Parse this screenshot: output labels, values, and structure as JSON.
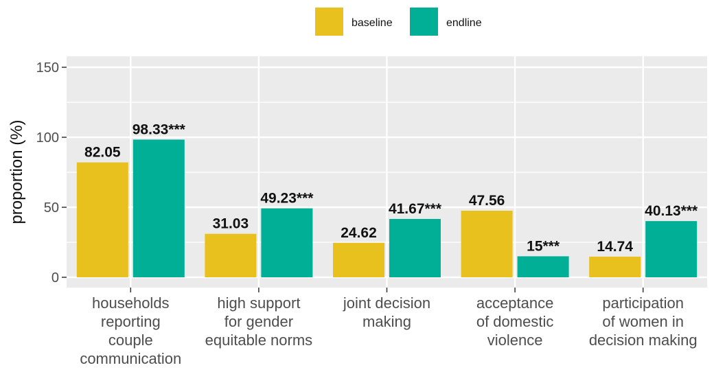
{
  "chart_data": {
    "type": "bar",
    "categories": [
      [
        "households",
        "reporting",
        "couple",
        "communication"
      ],
      [
        "high support",
        "for gender",
        "equitable norms"
      ],
      [
        "joint decision",
        "making"
      ],
      [
        "acceptance",
        "of domestic",
        "violence"
      ],
      [
        "participation",
        "of women in",
        "decision making"
      ]
    ],
    "series": [
      {
        "name": "baseline",
        "color": "#E8C11F",
        "values": [
          82.05,
          31.03,
          24.62,
          47.56,
          14.74
        ],
        "labels": [
          "82.05",
          "31.03",
          "24.62",
          "47.56",
          "14.74"
        ]
      },
      {
        "name": "endline",
        "color": "#00AF96",
        "values": [
          98.33,
          49.23,
          41.67,
          15,
          40.13
        ],
        "labels": [
          "98.33***",
          "49.23***",
          "41.67***",
          "15***",
          "40.13***"
        ]
      }
    ],
    "ylabel": "proportion (%)",
    "xlabel": "",
    "title": "",
    "ylim": [
      0,
      150
    ],
    "yticks": [
      0,
      50,
      100,
      150
    ],
    "ytick_labels": [
      "0",
      "50",
      "100",
      "150"
    ],
    "grid": true,
    "legend": "top-center",
    "panel_color": "#EBEBEB",
    "grid_color": "#FFFFFF"
  }
}
